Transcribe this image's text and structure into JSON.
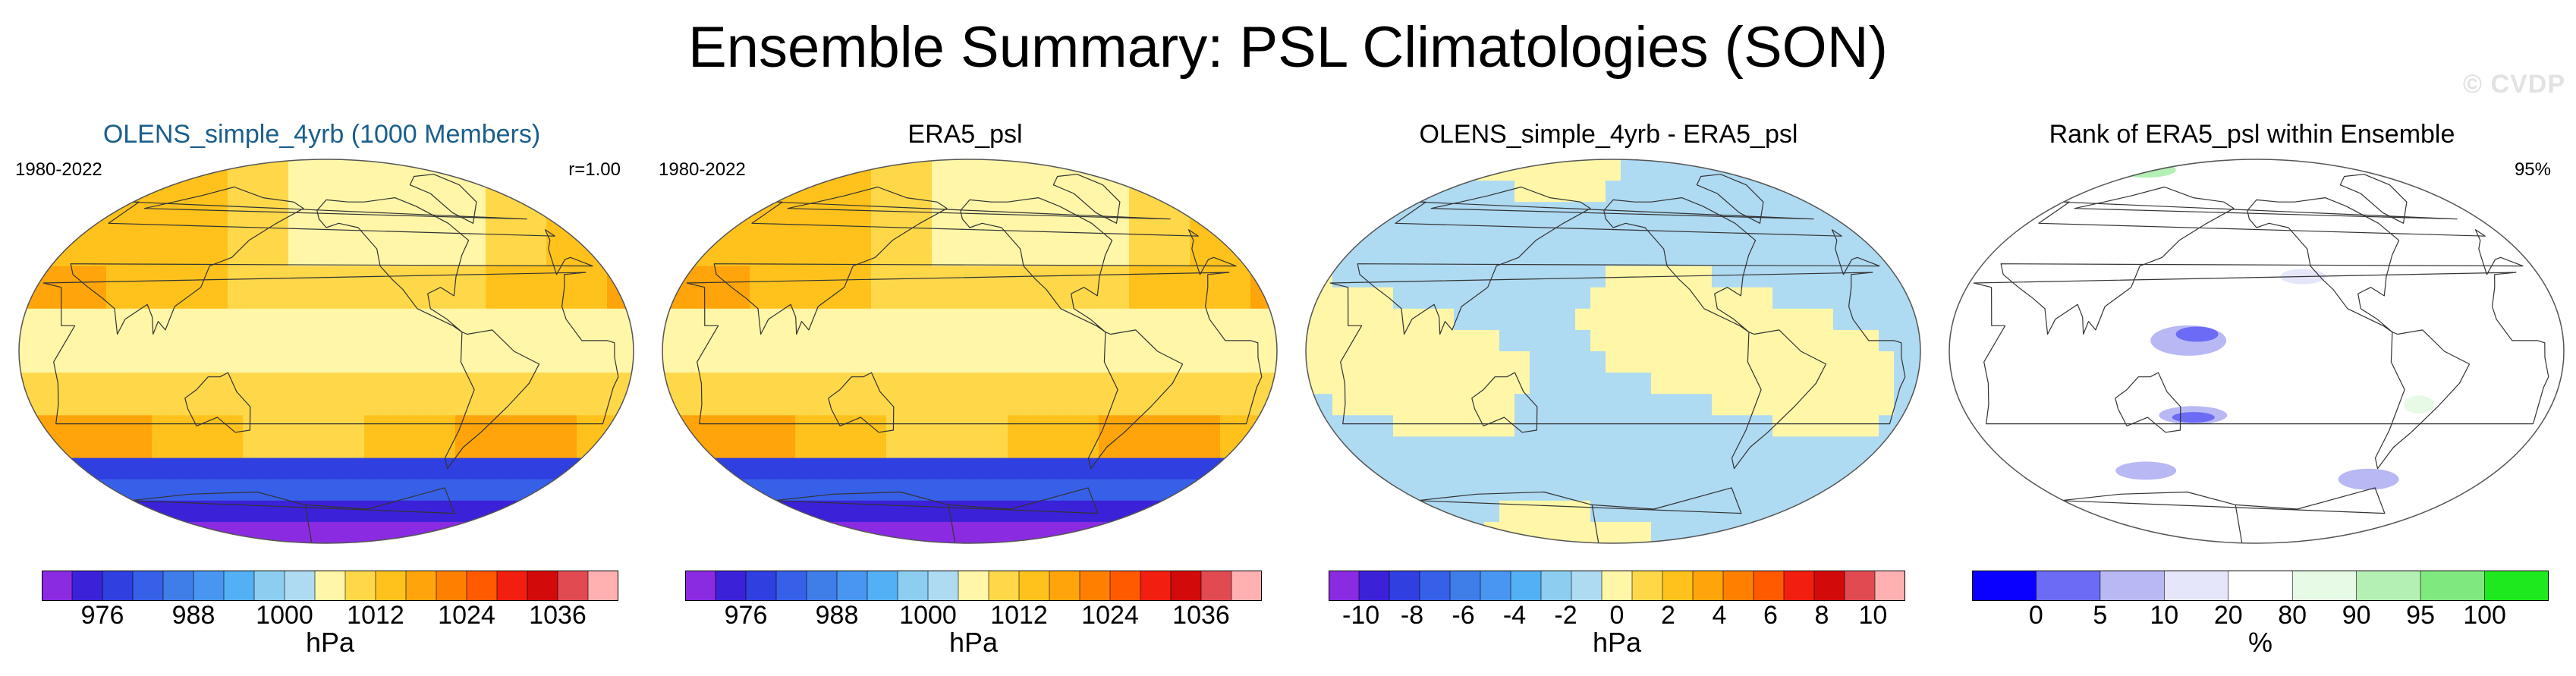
{
  "title": "Ensemble Summary: PSL Climatologies (SON)",
  "watermark": "© CVDP",
  "chart_data": [
    {
      "type": "heatmap",
      "title": "OLENS_simple_4yrb (1000 Members)",
      "left_label": "1980-2022",
      "right_label": "r=1.00",
      "colorbar": {
        "colors": [
          "#8a2be2",
          "#3b21d8",
          "#2f3fe0",
          "#3760e8",
          "#3f7de8",
          "#4896ef",
          "#53b0f5",
          "#8ccdf0",
          "#aedaf2",
          "#fff6a8",
          "#ffd84a",
          "#ffc21c",
          "#ffa40a",
          "#ff8000",
          "#ff5a00",
          "#f21e10",
          "#d20a0a",
          "#e04a50",
          "#ffb0b0"
        ],
        "tick_labels": [
          "976",
          "988",
          "1000",
          "1012",
          "1024",
          "1036"
        ],
        "tick_positions": [
          2,
          5,
          8,
          11,
          14,
          17
        ],
        "unit": "hPa"
      },
      "field": "full"
    },
    {
      "type": "heatmap",
      "title": "ERA5_psl",
      "left_label": "1980-2022",
      "right_label": "",
      "colorbar": {
        "colors": [
          "#8a2be2",
          "#3b21d8",
          "#2f3fe0",
          "#3760e8",
          "#3f7de8",
          "#4896ef",
          "#53b0f5",
          "#8ccdf0",
          "#aedaf2",
          "#fff6a8",
          "#ffd84a",
          "#ffc21c",
          "#ffa40a",
          "#ff8000",
          "#ff5a00",
          "#f21e10",
          "#d20a0a",
          "#e04a50",
          "#ffb0b0"
        ],
        "tick_labels": [
          "976",
          "988",
          "1000",
          "1012",
          "1024",
          "1036"
        ],
        "tick_positions": [
          2,
          5,
          8,
          11,
          14,
          17
        ],
        "unit": "hPa"
      },
      "field": "full"
    },
    {
      "type": "heatmap",
      "title": "OLENS_simple_4yrb - ERA5_psl",
      "left_label": "",
      "right_label": "",
      "colorbar": {
        "colors": [
          "#8a2be2",
          "#3b21d8",
          "#2f3fe0",
          "#3760e8",
          "#3f7de8",
          "#4896ef",
          "#53b0f5",
          "#8ccdf0",
          "#aedaf2",
          "#fff6a8",
          "#ffd84a",
          "#ffc21c",
          "#ffa40a",
          "#ff8000",
          "#ff5a00",
          "#f21e10",
          "#d20a0a",
          "#e04a50",
          "#ffb0b0"
        ],
        "tick_labels": [
          "-10",
          "-8",
          "-6",
          "-4",
          "-2",
          "0",
          "2",
          "4",
          "6",
          "8",
          "10"
        ],
        "tick_positions": [
          0,
          1,
          2,
          3,
          4,
          5,
          6,
          7,
          8,
          9,
          10
        ],
        "tick_span": 10,
        "unit": "hPa"
      },
      "field": "diff"
    },
    {
      "type": "heatmap",
      "title": "Rank of ERA5_psl within Ensemble",
      "left_label": "",
      "right_label": "95%",
      "colorbar": {
        "colors": [
          "#0a00ff",
          "#6b6bf5",
          "#b8b8f5",
          "#e6e6fa",
          "#ffffff",
          "#e6fae6",
          "#b4f0b4",
          "#7fe87f",
          "#1ee81e"
        ],
        "tick_labels": [
          "0",
          "5",
          "10",
          "20",
          "80",
          "90",
          "95",
          "100"
        ],
        "tick_positions": [
          1,
          2,
          3,
          4,
          5,
          6,
          7,
          8
        ],
        "unit": "%"
      },
      "field": "rank"
    }
  ]
}
